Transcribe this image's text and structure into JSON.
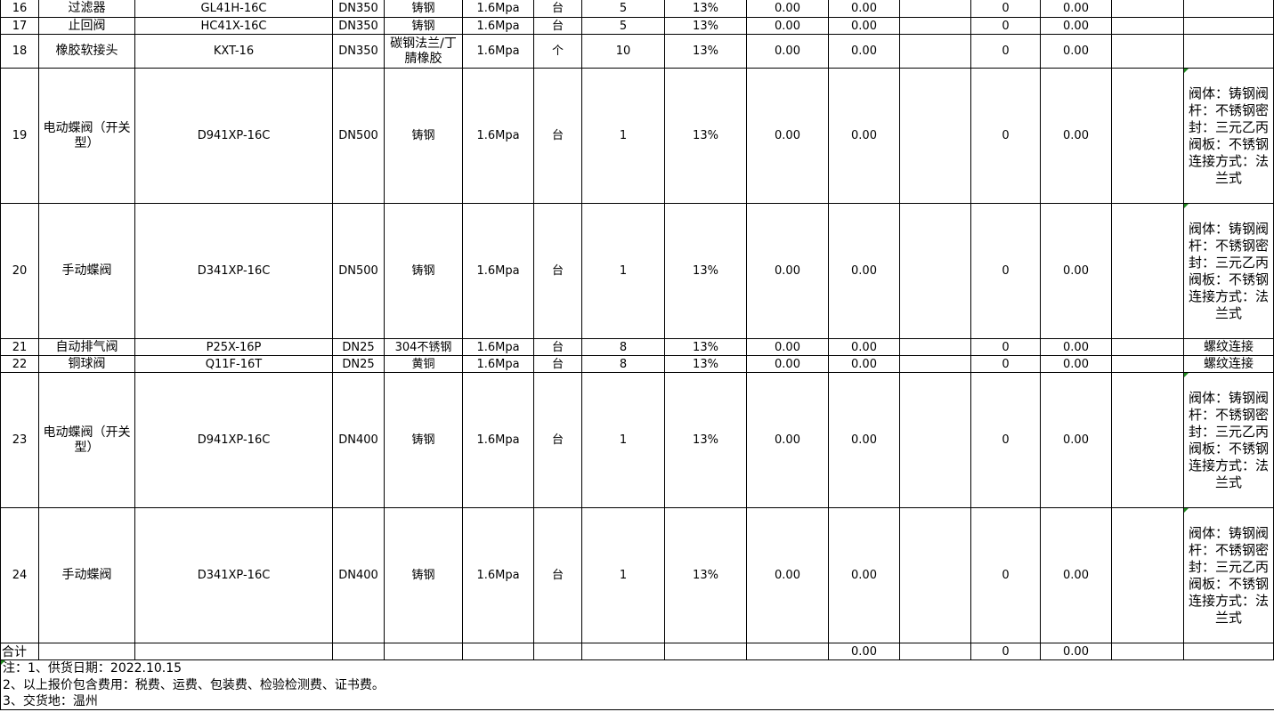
{
  "rows": [
    {
      "no": "16",
      "name": "过滤器",
      "model": "GL41H-16C",
      "size": "DN350",
      "material": "铸钢",
      "pressure": "1.6Mpa",
      "unit": "台",
      "qty": "5",
      "tax": "13%",
      "price": "0.00",
      "amount": "0.00",
      "c12": "",
      "c13": "0",
      "c14": "0.00",
      "c15": "",
      "remark": "",
      "tall": "s"
    },
    {
      "no": "17",
      "name": "止回阀",
      "model": "HC41X-16C",
      "size": "DN350",
      "material": "铸钢",
      "pressure": "1.6Mpa",
      "unit": "台",
      "qty": "5",
      "tax": "13%",
      "price": "0.00",
      "amount": "0.00",
      "c12": "",
      "c13": "0",
      "c14": "0.00",
      "c15": "",
      "remark": "",
      "tall": "s"
    },
    {
      "no": "18",
      "name": "橡胶软接头",
      "model": "KXT-16",
      "size": "DN350",
      "material": "碳钢法兰/丁腈橡胶",
      "pressure": "1.6Mpa",
      "unit": "个",
      "qty": "10",
      "tax": "13%",
      "price": "0.00",
      "amount": "0.00",
      "c12": "",
      "c13": "0",
      "c14": "0.00",
      "c15": "",
      "remark": "",
      "tall": "m"
    },
    {
      "no": "19",
      "name": "电动蝶阀（开关型）",
      "model": "D941XP-16C",
      "size": "DN500",
      "material": "铸钢",
      "pressure": "1.6Mpa",
      "unit": "台",
      "qty": "1",
      "tax": "13%",
      "price": "0.00",
      "amount": "0.00",
      "c12": "",
      "c13": "0",
      "c14": "0.00",
      "c15": "",
      "remark": "阀体：铸钢阀杆：不锈钢密封：三元乙丙　　阀板：不锈钢　　连接方式：法兰式",
      "tall": "l"
    },
    {
      "no": "20",
      "name": "手动蝶阀",
      "model": "D341XP-16C",
      "size": "DN500",
      "material": "铸钢",
      "pressure": "1.6Mpa",
      "unit": "台",
      "qty": "1",
      "tax": "13%",
      "price": "0.00",
      "amount": "0.00",
      "c12": "",
      "c13": "0",
      "c14": "0.00",
      "c15": "",
      "remark": "阀体：铸钢阀杆：不锈钢密封：三元乙丙　　阀板：不锈钢　　连接方式：法兰式",
      "tall": "l"
    },
    {
      "no": "21",
      "name": "自动排气阀",
      "model": "P25X-16P",
      "size": "DN25",
      "material": "304不锈钢",
      "pressure": "1.6Mpa",
      "unit": "台",
      "qty": "8",
      "tax": "13%",
      "price": "0.00",
      "amount": "0.00",
      "c12": "",
      "c13": "0",
      "c14": "0.00",
      "c15": "",
      "remark": "螺纹连接",
      "tall": "s"
    },
    {
      "no": "22",
      "name": "铜球阀",
      "model": "Q11F-16T",
      "size": "DN25",
      "material": "黄铜",
      "pressure": "1.6Mpa",
      "unit": "台",
      "qty": "8",
      "tax": "13%",
      "price": "0.00",
      "amount": "0.00",
      "c12": "",
      "c13": "0",
      "c14": "0.00",
      "c15": "",
      "remark": "螺纹连接",
      "tall": "s"
    },
    {
      "no": "23",
      "name": "电动蝶阀（开关型）",
      "model": "D941XP-16C",
      "size": "DN400",
      "material": "铸钢",
      "pressure": "1.6Mpa",
      "unit": "台",
      "qty": "1",
      "tax": "13%",
      "price": "0.00",
      "amount": "0.00",
      "c12": "",
      "c13": "0",
      "c14": "0.00",
      "c15": "",
      "remark": "阀体：铸钢阀杆：不锈钢密封：三元乙丙　　阀板：不锈钢　　连接方式：法兰式",
      "tall": "l"
    },
    {
      "no": "24",
      "name": "手动蝶阀",
      "model": "D341XP-16C",
      "size": "DN400",
      "material": "铸钢",
      "pressure": "1.6Mpa",
      "unit": "台",
      "qty": "1",
      "tax": "13%",
      "price": "0.00",
      "amount": "0.00",
      "c12": "",
      "c13": "0",
      "c14": "0.00",
      "c15": "",
      "remark": "阀体：铸钢阀杆：不锈钢密封：三元乙丙　　阀板：不锈钢　　连接方式：法兰式",
      "tall": "l"
    }
  ],
  "total": {
    "label": "合计",
    "amount": "0.00",
    "c13": "0",
    "c14": "0.00"
  },
  "notes": [
    "注：1、供货日期：2022.10.15",
    "2、以上报价包含费用：税费、运费、包装费、检验检测费、证书费。",
    "3、交货地：温州"
  ],
  "colors": {
    "comment_marker": "#1f8a1f",
    "grid": "#000000"
  }
}
